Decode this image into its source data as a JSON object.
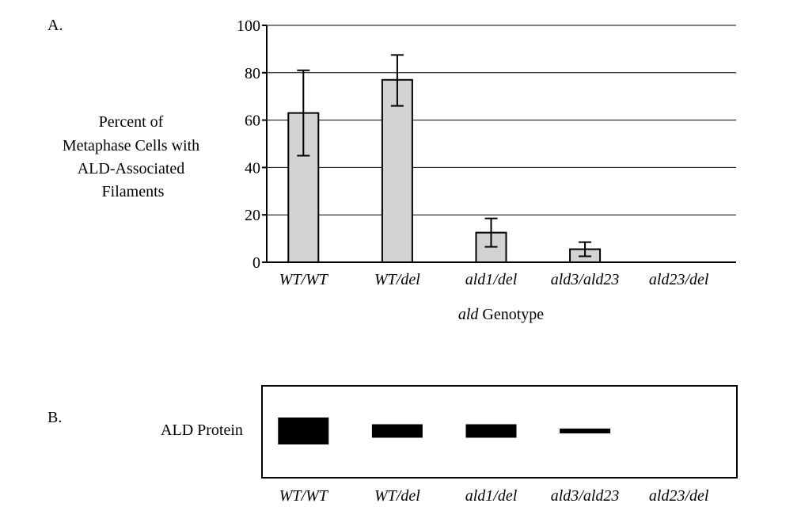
{
  "panel_a": {
    "label": "A.",
    "ylabel_lines": [
      "Percent of",
      "Metaphase Cells with",
      "ALD-Associated",
      "Filaments"
    ],
    "xlabel_italic": "ald",
    "xlabel_rest": " Genotype"
  },
  "panel_b": {
    "label": "B.",
    "row_label": "ALD Protein",
    "band_thickness": [
      1.0,
      0.5,
      0.5,
      0.18,
      0
    ]
  },
  "chart_data": {
    "type": "bar",
    "categories": [
      "WT/WT",
      "WT/del",
      "ald1/del",
      "ald3/ald23",
      "ald23/del"
    ],
    "values": [
      63,
      77,
      12.5,
      5.5,
      0
    ],
    "error_low": [
      45,
      66,
      6.5,
      2.5,
      null
    ],
    "error_high": [
      81,
      87.5,
      18.5,
      8.5,
      null
    ],
    "ylim": [
      0,
      100
    ],
    "yticks": [
      0,
      20,
      40,
      60,
      80,
      100
    ],
    "grid": true,
    "bar_color": "#d3d3d3",
    "xlabel": "ald Genotype",
    "ylabel": "Percent of Metaphase Cells with ALD-Associated Filaments"
  }
}
